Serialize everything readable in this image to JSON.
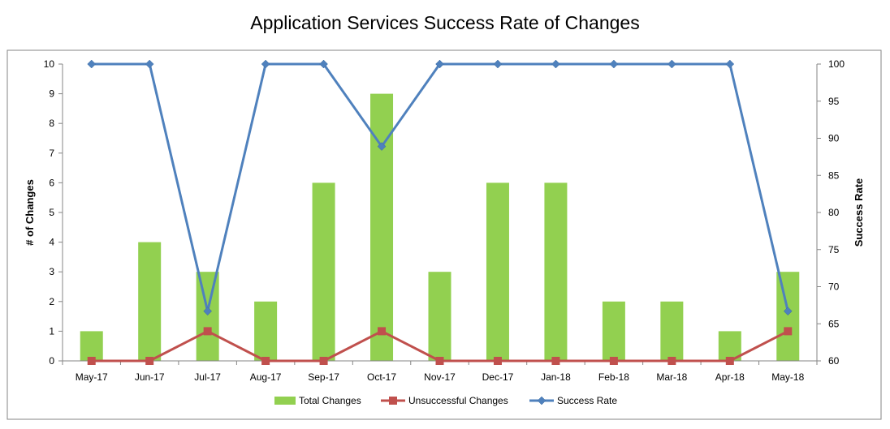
{
  "chart_data": {
    "type": "bar",
    "title": "Application Services Success Rate of Changes",
    "categories": [
      "May-17",
      "Jun-17",
      "Jul-17",
      "Aug-17",
      "Sep-17",
      "Oct-17",
      "Nov-17",
      "Dec-17",
      "Jan-18",
      "Feb-18",
      "Mar-18",
      "Apr-18",
      "May-18"
    ],
    "series": [
      {
        "name": "Total Changes",
        "kind": "bar",
        "axis": "left",
        "color": "#92d050",
        "values": [
          1,
          4,
          3,
          2,
          6,
          9,
          3,
          6,
          6,
          2,
          2,
          1,
          3
        ]
      },
      {
        "name": "Unsuccessful Changes",
        "kind": "line",
        "axis": "left",
        "marker": "square",
        "color": "#c0504d",
        "values": [
          0,
          0,
          1,
          0,
          0,
          1,
          0,
          0,
          0,
          0,
          0,
          0,
          1
        ]
      },
      {
        "name": "Success Rate",
        "kind": "line",
        "axis": "right",
        "marker": "diamond",
        "color": "#4f81bd",
        "values": [
          100,
          100,
          66.7,
          100,
          100,
          88.9,
          100,
          100,
          100,
          100,
          100,
          100,
          66.7
        ]
      }
    ],
    "ylabel": "# of Changes",
    "ylim": [
      0,
      10
    ],
    "yticks": [
      "0",
      "1",
      "2",
      "3",
      "4",
      "5",
      "6",
      "7",
      "8",
      "9",
      "10"
    ],
    "y2label": "Success Rate",
    "y2lim": [
      60,
      100
    ],
    "y2ticks": [
      "60",
      "65",
      "70",
      "75",
      "80",
      "85",
      "90",
      "95",
      "100"
    ],
    "grid": false,
    "legend": "bottom"
  }
}
